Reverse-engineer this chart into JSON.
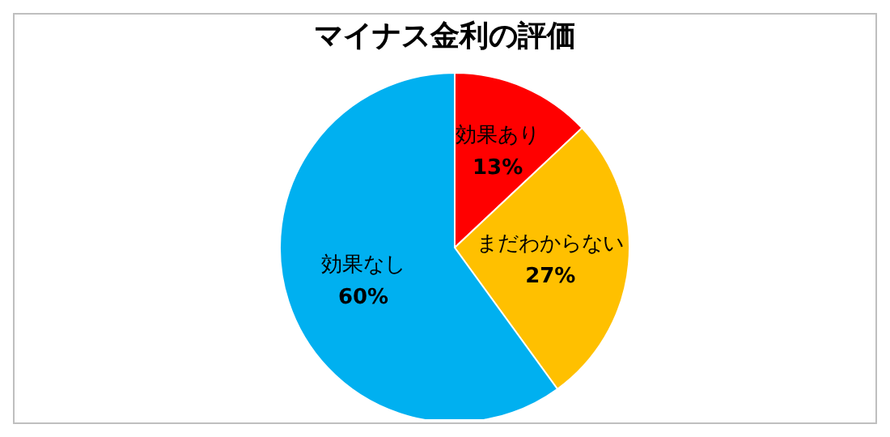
{
  "chart_data": {
    "type": "pie",
    "title": "マイナス金利の評価",
    "categories": [
      "効果あり",
      "まだわからない",
      "効果なし"
    ],
    "values": [
      13,
      27,
      60
    ],
    "colors": [
      "#ff0000",
      "#ffc000",
      "#00b0f0"
    ],
    "value_labels": [
      "13%",
      "27%",
      "60%"
    ]
  }
}
